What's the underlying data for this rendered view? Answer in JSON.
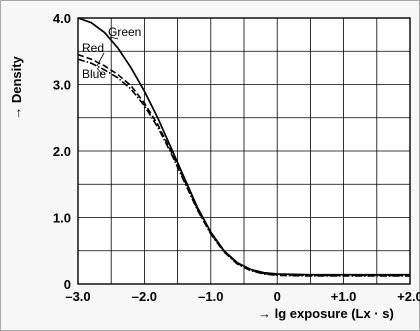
{
  "chart_data": {
    "type": "line",
    "title": "",
    "xlabel": "→  lg exposure (Lx · s)",
    "ylabel": "→  Density",
    "xlim": [
      -3.0,
      2.0
    ],
    "ylim": [
      0,
      4.0
    ],
    "x_ticks": [
      "–3.0",
      "–2.0",
      "–1.0",
      "0",
      "+1.0",
      "+2.0"
    ],
    "y_ticks": [
      "0",
      "1.0",
      "2.0",
      "3.0",
      "4.0"
    ],
    "grid": true,
    "series": [
      {
        "name": "Green",
        "style": "solid",
        "x": [
          -3.0,
          -2.8,
          -2.6,
          -2.4,
          -2.2,
          -2.0,
          -1.8,
          -1.6,
          -1.4,
          -1.2,
          -1.0,
          -0.8,
          -0.6,
          -0.4,
          -0.2,
          0.0,
          0.5,
          1.0,
          1.5,
          2.0
        ],
        "y": [
          4.0,
          3.93,
          3.78,
          3.55,
          3.25,
          2.9,
          2.5,
          2.05,
          1.6,
          1.15,
          0.78,
          0.5,
          0.32,
          0.22,
          0.17,
          0.15,
          0.14,
          0.14,
          0.14,
          0.14
        ]
      },
      {
        "name": "Red",
        "style": "dashed",
        "x": [
          -3.0,
          -2.8,
          -2.6,
          -2.4,
          -2.2,
          -2.0,
          -1.8,
          -1.6,
          -1.4,
          -1.2,
          -1.0,
          -0.8,
          -0.6,
          -0.4,
          -0.2,
          0.0,
          0.5,
          1.0,
          1.5,
          2.0
        ],
        "y": [
          3.45,
          3.38,
          3.28,
          3.15,
          2.98,
          2.72,
          2.4,
          2.0,
          1.57,
          1.13,
          0.76,
          0.49,
          0.31,
          0.21,
          0.16,
          0.14,
          0.13,
          0.13,
          0.13,
          0.13
        ]
      },
      {
        "name": "Blue",
        "style": "dashdot",
        "x": [
          -3.0,
          -2.8,
          -2.6,
          -2.4,
          -2.2,
          -2.0,
          -1.8,
          -1.6,
          -1.4,
          -1.2,
          -1.0,
          -0.8,
          -0.6,
          -0.4,
          -0.2,
          0.0,
          0.5,
          1.0,
          1.5,
          2.0
        ],
        "y": [
          3.38,
          3.32,
          3.22,
          3.1,
          2.93,
          2.68,
          2.36,
          1.97,
          1.54,
          1.11,
          0.75,
          0.48,
          0.3,
          0.2,
          0.15,
          0.13,
          0.12,
          0.12,
          0.12,
          0.12
        ]
      }
    ]
  }
}
